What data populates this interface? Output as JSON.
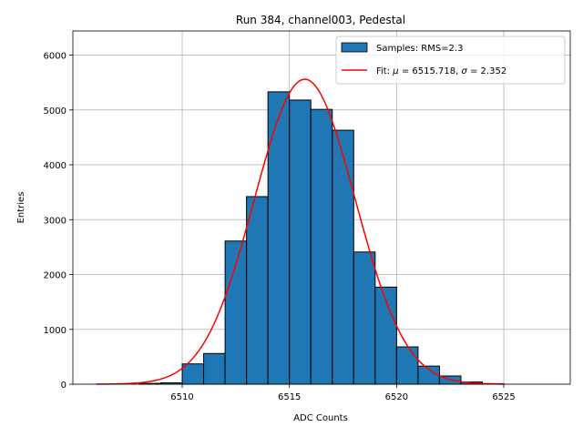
{
  "chart_data": {
    "type": "bar",
    "title": "Run 384, channel003, Pedestal",
    "xlabel": "ADC Counts",
    "ylabel": "Entries",
    "xlim": [
      6504.9,
      6528.1
    ],
    "ylim": [
      0,
      6440
    ],
    "xticks": [
      6510,
      6515,
      6520,
      6525
    ],
    "yticks": [
      0,
      1000,
      2000,
      3000,
      4000,
      5000,
      6000
    ],
    "grid": true,
    "legend_position": "top-right",
    "histogram": {
      "name": "Samples: RMS=2.3",
      "color": "#1f77b4",
      "edge_color": "#000000",
      "bins": [
        {
          "x0": 6508,
          "x1": 6509,
          "count": 15
        },
        {
          "x0": 6509,
          "x1": 6510,
          "count": 25
        },
        {
          "x0": 6510,
          "x1": 6511,
          "count": 370
        },
        {
          "x0": 6511,
          "x1": 6512,
          "count": 560
        },
        {
          "x0": 6512,
          "x1": 6513,
          "count": 2610
        },
        {
          "x0": 6513,
          "x1": 6514,
          "count": 3420
        },
        {
          "x0": 6514,
          "x1": 6515,
          "count": 5330
        },
        {
          "x0": 6515,
          "x1": 6516,
          "count": 5180
        },
        {
          "x0": 6516,
          "x1": 6517,
          "count": 5010
        },
        {
          "x0": 6517,
          "x1": 6518,
          "count": 4630
        },
        {
          "x0": 6518,
          "x1": 6519,
          "count": 2410
        },
        {
          "x0": 6519,
          "x1": 6520,
          "count": 1770
        },
        {
          "x0": 6520,
          "x1": 6521,
          "count": 680
        },
        {
          "x0": 6521,
          "x1": 6522,
          "count": 330
        },
        {
          "x0": 6522,
          "x1": 6523,
          "count": 150
        },
        {
          "x0": 6523,
          "x1": 6524,
          "count": 40
        },
        {
          "x0": 6524,
          "x1": 6525,
          "count": 10
        }
      ]
    },
    "fit": {
      "label_prefix": "Fit: ",
      "mu_symbol": "μ",
      "mu_text": " = 6515.718, ",
      "sigma_symbol": "σ",
      "sigma_text": " = 2.352",
      "color": "#ff0000",
      "mu": 6515.718,
      "sigma": 2.352,
      "amplitude": 5560,
      "x_range": [
        6506,
        6525
      ]
    }
  }
}
